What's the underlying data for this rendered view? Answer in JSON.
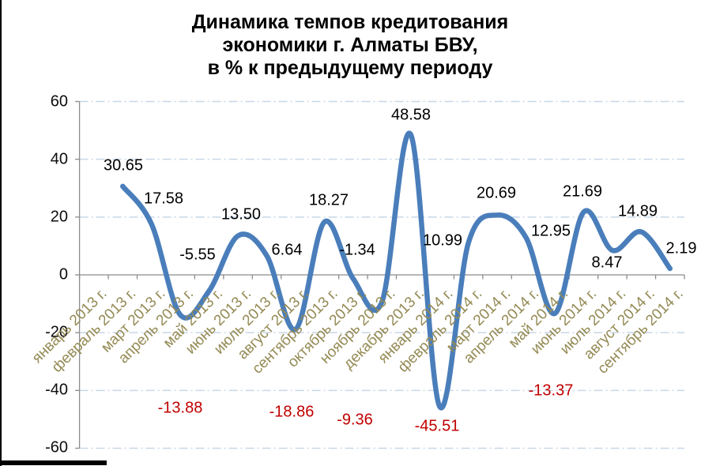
{
  "title": {
    "line1": "Динамика темпов кредитования",
    "line2": "экономики г. Алматы БВУ,",
    "line3": "в %  к предыдущему периоду"
  },
  "chart_data": {
    "type": "line",
    "smooth": true,
    "title": "Динамика темпов кредитования экономики г. Алматы БВУ, в % к предыдущему периоду",
    "xlabel": "",
    "ylabel": "",
    "legend": "none",
    "grid": "horizontal dash-dot",
    "ylim": [
      -60,
      60
    ],
    "ytick_step": 20,
    "y_ticks": [
      "60",
      "40",
      "20",
      "0",
      "-20",
      "-40",
      "-60"
    ],
    "y_tick_values": [
      60,
      40,
      20,
      0,
      -20,
      -40,
      -60
    ],
    "categories": [
      "январь 2013 г.",
      "февраль 2013 г.",
      "март 2013 г.",
      "апрель 2013 г.",
      "май 2013 г.",
      "июнь 2013 г.",
      "июль 2013 г.",
      "август 2013 г.",
      "сентябрь 2013 г.",
      "октябрь 2013 г.",
      "ноябрь 2013 г.",
      "декабрь 2013 г.",
      "январь 2014 г.",
      "февраль 2014 г.",
      "март 2014 г.",
      "апрель 2014 г.",
      "май 2014 г.",
      "июнь 2014 г.",
      "июль 2014 г.",
      "август 2014 г.",
      "сентябрь 2014 г."
    ],
    "values": [
      null,
      30.65,
      17.58,
      -13.88,
      -5.55,
      13.5,
      6.64,
      -18.86,
      18.27,
      -1.34,
      -9.36,
      48.58,
      -45.51,
      10.99,
      20.69,
      12.95,
      -13.37,
      21.69,
      8.47,
      14.89,
      2.19
    ],
    "red_label_values": [
      -13.88,
      -18.86,
      -9.36,
      -45.51,
      -13.37
    ],
    "colors": {
      "line": "#4A7EBB",
      "data_label": "#000000",
      "negative_data_label": "#C00000",
      "category_label": "#948A54",
      "gridline": "#C8D7E8",
      "axis": "#8C8C8C"
    }
  }
}
